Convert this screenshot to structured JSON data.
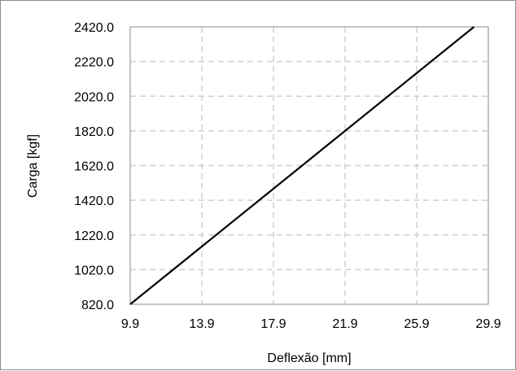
{
  "chart_data": {
    "type": "line",
    "xlabel": "Deflexão [mm]",
    "ylabel": "Carga [kgf]",
    "xlim": [
      9.9,
      29.9
    ],
    "ylim": [
      820.0,
      2420.0
    ],
    "xticks": [
      "9.9",
      "13.9",
      "17.9",
      "21.9",
      "25.9",
      "29.9"
    ],
    "yticks": [
      "820.0",
      "1020.0",
      "1220.0",
      "1420.0",
      "1620.0",
      "1820.0",
      "2020.0",
      "2220.0",
      "2420.0"
    ],
    "grid": true,
    "series": [
      {
        "x": [
          9.9,
          29.1
        ],
        "y": [
          820.0,
          2420.0
        ]
      }
    ]
  }
}
